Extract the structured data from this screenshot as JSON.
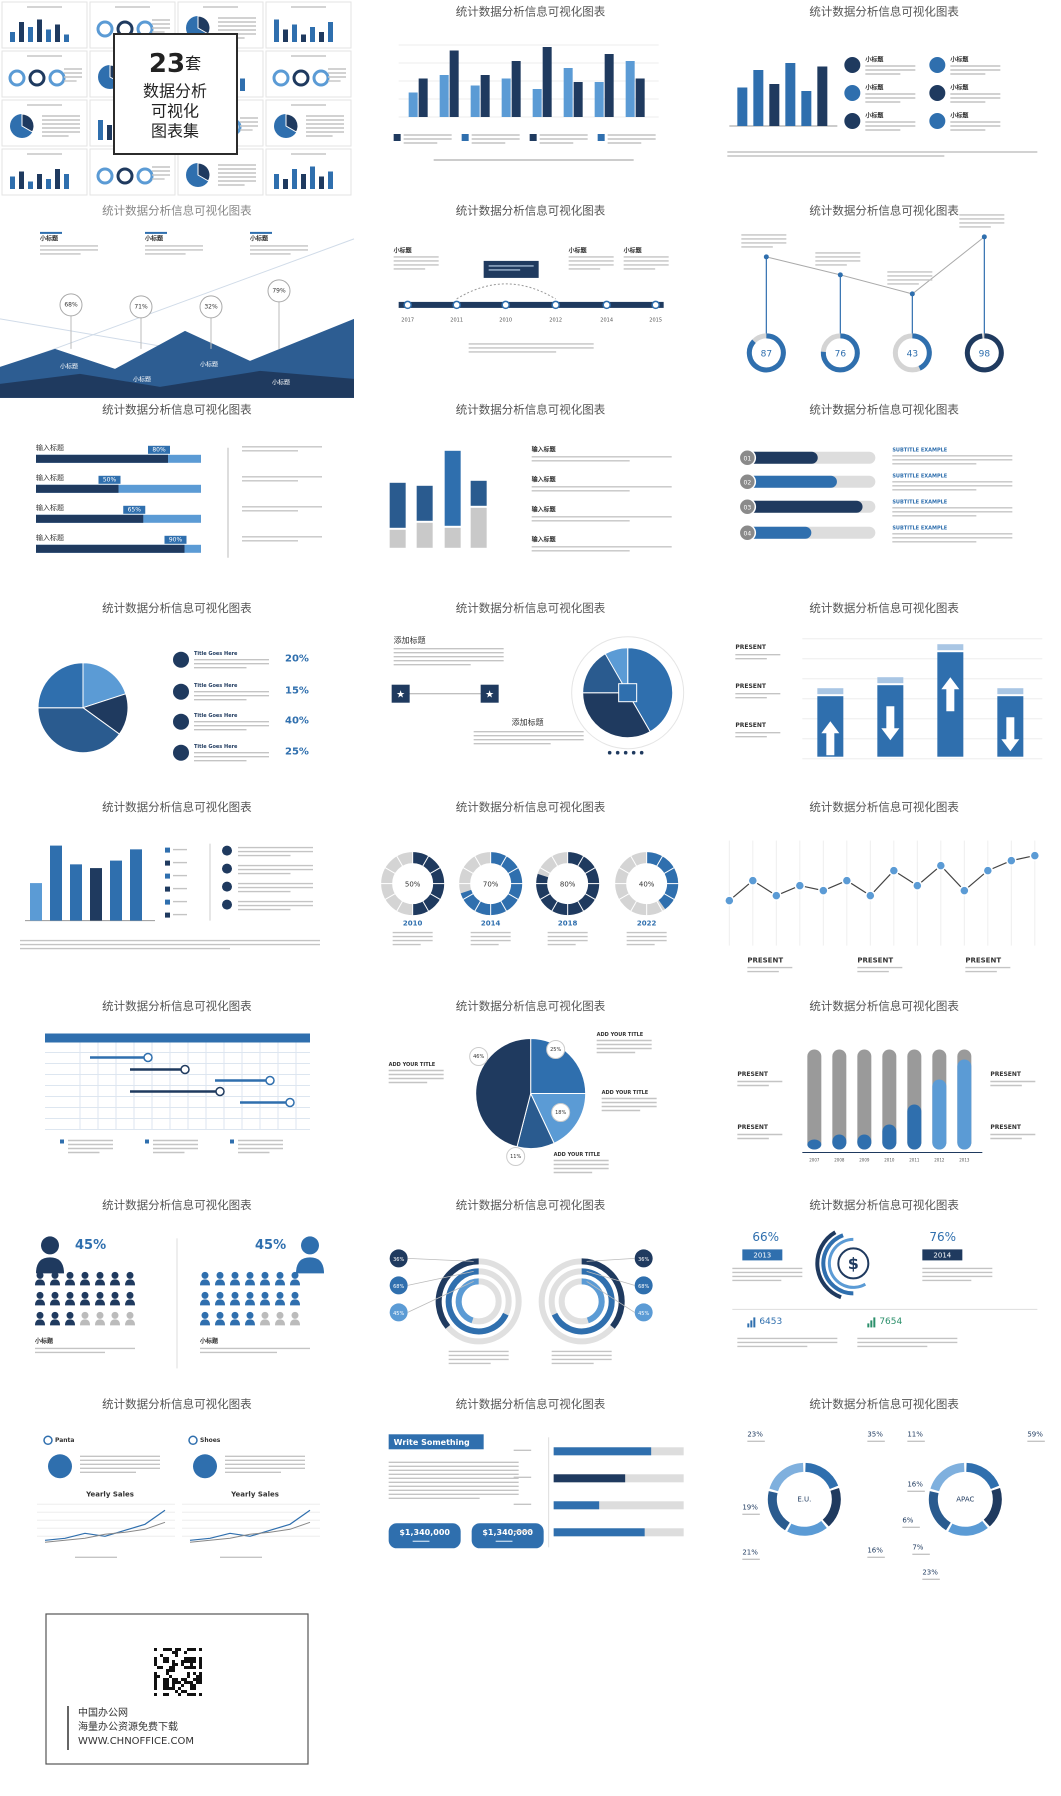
{
  "cover": {
    "number": "23",
    "unit": "套",
    "lines": [
      "数据分析",
      "可视化",
      "图表集"
    ]
  },
  "slides": [
    {
      "title": "统计数据分析信息可视化图表"
    },
    {
      "title": "统计数据分析信息可视化图表",
      "labels": [
        "小标题",
        "小标题",
        "小标题",
        "小标题",
        "小标题",
        "小标题"
      ]
    },
    {
      "title": "统计数据分析信息可视化图表",
      "labels": [
        "小标题",
        "小标题",
        "小标题",
        "68%",
        "71%",
        "32%",
        "79%",
        "小标题",
        "小标题",
        "小标题",
        "小标题"
      ]
    },
    {
      "title": "统计数据分析信息可视化图表",
      "labels": [
        "小标题",
        "小标题",
        "小标题",
        "2017",
        "2011",
        "2010",
        "2012",
        "2014",
        "2015"
      ]
    },
    {
      "title": "统计数据分析信息可视化图表",
      "labels": [
        "87",
        "76",
        "43",
        "98"
      ]
    },
    {
      "title": "统计数据分析信息可视化图表",
      "labels": [
        "输入标题",
        "80%",
        "输入标题",
        "50%",
        "输入标题",
        "65%",
        "输入标题",
        "90%"
      ]
    },
    {
      "title": "统计数据分析信息可视化图表",
      "labels": [
        "输入标题",
        "输入标题",
        "输入标题",
        "输入标题"
      ]
    },
    {
      "title": "统计数据分析信息可视化图表",
      "labels": [
        "01",
        "02",
        "03",
        "04",
        "SUBTITLE EXAMPLE",
        "SUBTITLE EXAMPLE",
        "SUBTITLE EXAMPLE",
        "SUBTITLE EXAMPLE"
      ]
    },
    {
      "title": "统计数据分析信息可视化图表",
      "labels": [
        "Title Goes Here",
        "20%",
        "Title Goes Here",
        "15%",
        "Title Goes Here",
        "40%",
        "Title Goes Here",
        "25%"
      ]
    },
    {
      "title": "统计数据分析信息可视化图表",
      "labels": [
        "添加标题",
        "添加标题"
      ]
    },
    {
      "title": "统计数据分析信息可视化图表",
      "labels": [
        "PRESENT",
        "PRESENT",
        "PRESENT"
      ]
    },
    {
      "title": "统计数据分析信息可视化图表"
    },
    {
      "title": "统计数据分析信息可视化图表",
      "labels": [
        "50%",
        "2010",
        "70%",
        "2014",
        "80%",
        "2018",
        "40%",
        "2022"
      ]
    },
    {
      "title": "统计数据分析信息可视化图表",
      "labels": [
        "PRESENT",
        "PRESENT",
        "PRESENT"
      ]
    },
    {
      "title": "统计数据分析信息可视化图表"
    },
    {
      "title": "统计数据分析信息可视化图表",
      "labels": [
        "ADD YOUR TITLE",
        "ADD YOUR TITLE",
        "ADD YOUR TITLE",
        "ADD YOUR TITLE",
        "46%",
        "25%",
        "18%",
        "11%"
      ]
    },
    {
      "title": "统计数据分析信息可视化图表",
      "labels": [
        "PRESENT",
        "PRESENT",
        "PRESENT",
        "PRESENT",
        "2007",
        "2008",
        "2009",
        "2010",
        "2011",
        "2012",
        "2013"
      ]
    },
    {
      "title": "统计数据分析信息可视化图表",
      "labels": [
        "45%",
        "45%",
        "小标题",
        "小标题"
      ]
    },
    {
      "title": "统计数据分析信息可视化图表",
      "labels": [
        "36%",
        "68%",
        "45%",
        "36%",
        "68%",
        "45%"
      ]
    },
    {
      "title": "统计数据分析信息可视化图表",
      "labels": [
        "66%",
        "2013",
        "76%",
        "2014",
        "6453",
        "7654"
      ]
    },
    {
      "title": "统计数据分析信息可视化图表",
      "labels": [
        "Panta",
        "Shoes",
        "Yearly Sales",
        "Yearly Sales"
      ]
    },
    {
      "title": "统计数据分析信息可视化图表",
      "labels": [
        "Write Something",
        "$1,340,000",
        "$1,340,000"
      ]
    },
    {
      "title": "统计数据分析信息可视化图表",
      "labels": [
        "23%",
        "35%",
        "19%",
        "21%",
        "16%",
        "E.U.",
        "11%",
        "59%",
        "16%",
        "6%",
        "7%",
        "23%",
        "APAC"
      ]
    }
  ],
  "footer": {
    "lines": [
      "中国办公网",
      "海量办公资源免费下载",
      "WWW.CHNOFFICE.COM"
    ]
  }
}
